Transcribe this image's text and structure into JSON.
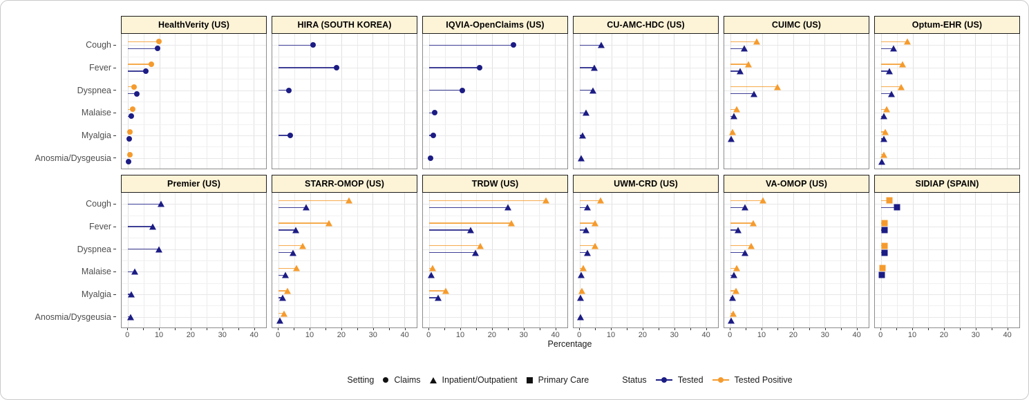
{
  "chart_data": {
    "type": "scatter",
    "subtype": "faceted-lollipop-dot-plot",
    "title": "",
    "xlabel": "Percentage",
    "xlim": [
      0,
      40
    ],
    "x_domain": [
      -2,
      44
    ],
    "x_ticks": [
      0,
      10,
      20,
      30,
      40
    ],
    "x_gridlines": [
      0,
      5,
      10,
      15,
      20,
      25,
      30,
      35,
      40
    ],
    "grid": "on",
    "categories": [
      "Cough",
      "Fever",
      "Dyspnea",
      "Malaise",
      "Myalgia",
      "Anosmia/Dysgeusia"
    ],
    "colors": {
      "tested": "#1c1c85",
      "tested_positive": "#f59b2d",
      "strip_bg": "#fdf3d6",
      "strip_border": "#1a1a1a",
      "panel_border": "#8c8c8c",
      "gridline": "#e0e0e0",
      "tick_text": "#4d4d4d"
    },
    "panels": [
      {
        "name": "HealthVerity (US)",
        "setting": "Claims",
        "shape": "circle",
        "tested": [
          9.4,
          5.7,
          2.8,
          1.0,
          0.4,
          0.2
        ],
        "tested_positive": [
          9.9,
          7.4,
          2.0,
          1.5,
          0.7,
          0.6
        ]
      },
      {
        "name": "HIRA (SOUTH KOREA)",
        "setting": "Claims",
        "shape": "circle",
        "tested": [
          10.9,
          18.4,
          3.3,
          null,
          3.7,
          null
        ],
        "tested_positive": null
      },
      {
        "name": "IQVIA-OpenClaims (US)",
        "setting": "Claims",
        "shape": "circle",
        "tested": [
          26.9,
          16.0,
          10.6,
          1.7,
          1.2,
          0.4
        ],
        "tested_positive": null
      },
      {
        "name": "CU-AMC-HDC (US)",
        "setting": "Inpatient/Outpatient",
        "shape": "triangle",
        "tested": [
          6.9,
          4.7,
          4.2,
          1.9,
          0.9,
          0.4
        ],
        "tested_positive": null
      },
      {
        "name": "CUIMC (US)",
        "setting": "Inpatient/Outpatient",
        "shape": "triangle",
        "tested": [
          4.4,
          3.1,
          7.5,
          1.0,
          0.3,
          null
        ],
        "tested_positive": [
          8.4,
          5.7,
          14.9,
          1.9,
          0.6,
          null
        ]
      },
      {
        "name": "Optum-EHR (US)",
        "setting": "Inpatient/Outpatient",
        "shape": "triangle",
        "tested": [
          3.9,
          2.7,
          3.3,
          0.8,
          0.8,
          0.2
        ],
        "tested_positive": [
          8.3,
          6.7,
          6.4,
          1.7,
          1.4,
          0.8
        ]
      },
      {
        "name": "Premier (US)",
        "setting": "Inpatient/Outpatient",
        "shape": "triangle",
        "tested": [
          10.6,
          8.0,
          9.8,
          2.1,
          1.0,
          0.8
        ],
        "tested_positive": null
      },
      {
        "name": "STARR-OMOP (US)",
        "setting": "Inpatient/Outpatient",
        "shape": "triangle",
        "tested": [
          8.7,
          5.5,
          4.6,
          2.2,
          1.2,
          0.4
        ],
        "tested_positive": [
          22.5,
          16.1,
          7.6,
          5.7,
          2.8,
          1.7
        ]
      },
      {
        "name": "TRDW (US)",
        "setting": "Inpatient/Outpatient",
        "shape": "triangle",
        "tested": [
          25.0,
          13.2,
          14.7,
          0.6,
          2.8,
          null
        ],
        "tested_positive": [
          37.2,
          26.2,
          16.3,
          1.1,
          5.2,
          null
        ]
      },
      {
        "name": "UWM-CRD (US)",
        "setting": "Inpatient/Outpatient",
        "shape": "triangle",
        "tested": [
          2.4,
          1.9,
          2.4,
          0.4,
          0.2,
          0.3
        ],
        "tested_positive": [
          6.6,
          4.9,
          4.9,
          1.0,
          0.7,
          null
        ]
      },
      {
        "name": "VA-OMOP (US)",
        "setting": "Inpatient/Outpatient",
        "shape": "triangle",
        "tested": [
          4.5,
          2.4,
          4.5,
          1.0,
          0.6,
          0.2
        ],
        "tested_positive": [
          10.4,
          7.3,
          6.6,
          1.9,
          1.7,
          0.8
        ]
      },
      {
        "name": "SIDIAP (SPAIN)",
        "setting": "Primary Care",
        "shape": "square",
        "tested": [
          5.0,
          1.0,
          1.0,
          0.2,
          null,
          null
        ],
        "tested_positive": [
          2.6,
          1.1,
          1.1,
          0.4,
          null,
          null
        ]
      }
    ],
    "legend": {
      "position": "bottom",
      "setting_label": "Setting",
      "settings": [
        {
          "label": "Claims",
          "shape": "circle"
        },
        {
          "label": "Inpatient/Outpatient",
          "shape": "triangle"
        },
        {
          "label": "Primary Care",
          "shape": "square"
        }
      ],
      "status_label": "Status",
      "statuses": [
        {
          "label": "Tested",
          "color": "#1c1c85"
        },
        {
          "label": "Tested Positive",
          "color": "#f59b2d"
        }
      ]
    }
  }
}
